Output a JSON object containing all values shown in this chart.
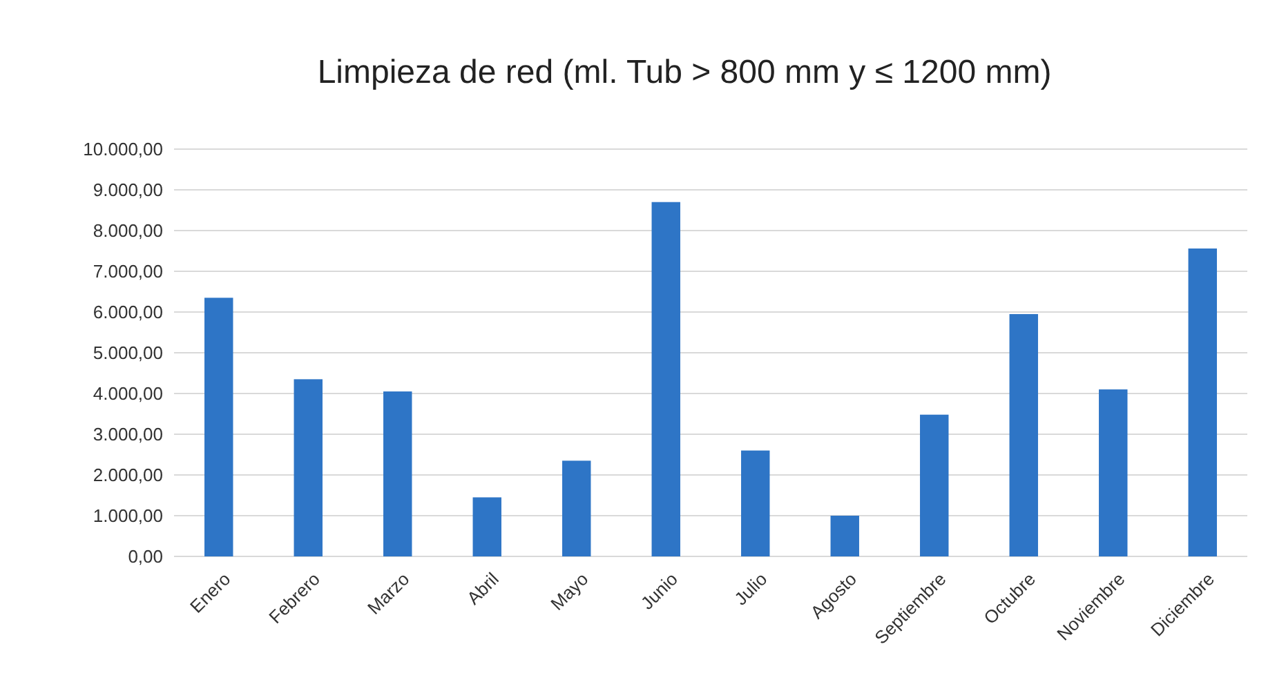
{
  "chart_data": {
    "type": "bar",
    "title": "Limpieza de red (ml. Tub > 800 mm y ≤ 1200 mm)",
    "categories": [
      "Enero",
      "Febrero",
      "Marzo",
      "Abril",
      "Mayo",
      "Junio",
      "Julio",
      "Agosto",
      "Septiembre",
      "Octubre",
      "Noviembre",
      "Diciembre"
    ],
    "values": [
      6350,
      4350,
      4050,
      1450,
      2350,
      8700,
      2600,
      1000,
      3480,
      5950,
      4100,
      7560
    ],
    "color": "#2e75c6",
    "ylim": [
      0,
      10000
    ],
    "yticks": [
      {
        "value": 0,
        "label": "0,00"
      },
      {
        "value": 1000,
        "label": "1.000,00"
      },
      {
        "value": 2000,
        "label": "2.000,00"
      },
      {
        "value": 3000,
        "label": "3.000,00"
      },
      {
        "value": 4000,
        "label": "4.000,00"
      },
      {
        "value": 5000,
        "label": "5.000,00"
      },
      {
        "value": 6000,
        "label": "6.000,00"
      },
      {
        "value": 7000,
        "label": "7.000,00"
      },
      {
        "value": 8000,
        "label": "8.000,00"
      },
      {
        "value": 9000,
        "label": "9.000,00"
      },
      {
        "value": 10000,
        "label": "10.000,00"
      }
    ],
    "grid": "y"
  }
}
